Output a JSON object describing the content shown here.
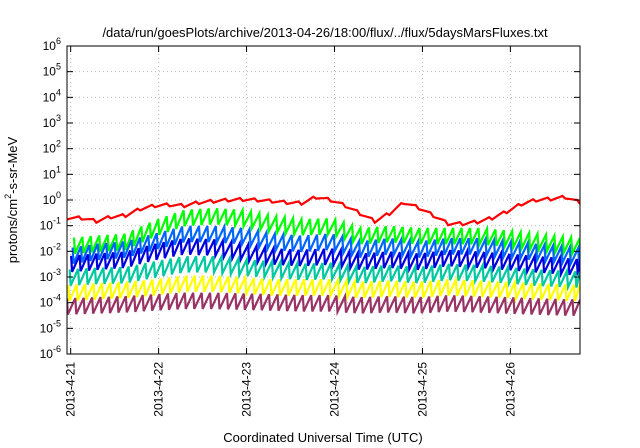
{
  "chart_data": {
    "type": "line",
    "title": "/data/run/goesPlots/archive/2013-04-26/18:00/flux/../flux/5daysMarsFluxes.txt",
    "xlabel": "Coordinated Universal Time (UTC)",
    "ylabel": {
      "prefix": "protons/cm",
      "superscript": "2",
      "suffix": "-s-sr-MeV"
    },
    "x_scale": "time",
    "x_range": [
      "2013-04-20T23:00",
      "2013-04-26T19:00"
    ],
    "x_tick_labels": [
      "2013-4-21",
      "2013-4-22",
      "2013-4-23",
      "2013-4-24",
      "2013-4-25",
      "2013-4-26"
    ],
    "y_scale": "log",
    "ylim": [
      1e-06,
      1000000.0
    ],
    "y_tick_labels": [
      {
        "base": "10",
        "exp": "-6"
      },
      {
        "base": "10",
        "exp": "-5"
      },
      {
        "base": "10",
        "exp": "-4"
      },
      {
        "base": "10",
        "exp": "-3"
      },
      {
        "base": "10",
        "exp": "-2"
      },
      {
        "base": "10",
        "exp": "-1"
      },
      {
        "base": "10",
        "exp": "0"
      },
      {
        "base": "10",
        "exp": "1"
      },
      {
        "base": "10",
        "exp": "2"
      },
      {
        "base": "10",
        "exp": "3"
      },
      {
        "base": "10",
        "exp": "4"
      },
      {
        "base": "10",
        "exp": "5"
      },
      {
        "base": "10",
        "exp": "6"
      }
    ],
    "grid": true,
    "legend": "none",
    "series": [
      {
        "color": "#ff0000",
        "pattern": "slow",
        "points": [
          {
            "x": "2013-04-20T23:00",
            "y": 0.2
          },
          {
            "x": "2013-04-21T03:00",
            "y": 0.2
          },
          {
            "x": "2013-04-21T07:00",
            "y": 0.15
          },
          {
            "x": "2013-04-21T11:00",
            "y": 0.22
          },
          {
            "x": "2013-04-21T15:00",
            "y": 0.25
          },
          {
            "x": "2013-04-21T19:00",
            "y": 0.45
          },
          {
            "x": "2013-04-21T23:00",
            "y": 0.6
          },
          {
            "x": "2013-04-22T03:00",
            "y": 0.65
          },
          {
            "x": "2013-04-22T07:00",
            "y": 0.6
          },
          {
            "x": "2013-04-22T11:00",
            "y": 0.8
          },
          {
            "x": "2013-04-22T15:00",
            "y": 0.9
          },
          {
            "x": "2013-04-22T19:00",
            "y": 1.0
          },
          {
            "x": "2013-04-22T23:00",
            "y": 1.05
          },
          {
            "x": "2013-04-23T03:00",
            "y": 1.0
          },
          {
            "x": "2013-04-23T07:00",
            "y": 0.9
          },
          {
            "x": "2013-04-23T11:00",
            "y": 0.8
          },
          {
            "x": "2013-04-23T15:00",
            "y": 0.75
          },
          {
            "x": "2013-04-23T19:00",
            "y": 1.3
          },
          {
            "x": "2013-04-23T23:00",
            "y": 1.0
          },
          {
            "x": "2013-04-24T03:00",
            "y": 0.6
          },
          {
            "x": "2013-04-24T07:00",
            "y": 0.3
          },
          {
            "x": "2013-04-24T11:00",
            "y": 0.15
          },
          {
            "x": "2013-04-24T15:00",
            "y": 0.3
          },
          {
            "x": "2013-04-24T19:00",
            "y": 0.8
          },
          {
            "x": "2013-04-24T23:00",
            "y": 0.5
          },
          {
            "x": "2013-04-25T03:00",
            "y": 0.25
          },
          {
            "x": "2013-04-25T07:00",
            "y": 0.12
          },
          {
            "x": "2013-04-25T11:00",
            "y": 0.12
          },
          {
            "x": "2013-04-25T15:00",
            "y": 0.14
          },
          {
            "x": "2013-04-25T19:00",
            "y": 0.2
          },
          {
            "x": "2013-04-25T23:00",
            "y": 0.35
          },
          {
            "x": "2013-04-26T03:00",
            "y": 0.7
          },
          {
            "x": "2013-04-26T07:00",
            "y": 1.0
          },
          {
            "x": "2013-04-26T11:00",
            "y": 1.1
          },
          {
            "x": "2013-04-26T15:00",
            "y": 1.3
          },
          {
            "x": "2013-04-26T19:00",
            "y": 0.8
          }
        ]
      },
      {
        "color": "#00ff00",
        "pattern": "sawtooth",
        "points": [
          {
            "x": "2013-04-20T23:00",
            "y": 0.02
          },
          {
            "x": "2013-04-21T07:00",
            "y": 0.025
          },
          {
            "x": "2013-04-21T15:00",
            "y": 0.03
          },
          {
            "x": "2013-04-21T23:00",
            "y": 0.1
          },
          {
            "x": "2013-04-22T07:00",
            "y": 0.25
          },
          {
            "x": "2013-04-22T15:00",
            "y": 0.3
          },
          {
            "x": "2013-04-22T23:00",
            "y": 0.25
          },
          {
            "x": "2013-04-23T07:00",
            "y": 0.15
          },
          {
            "x": "2013-04-23T15:00",
            "y": 0.11
          },
          {
            "x": "2013-04-23T23:00",
            "y": 0.12
          },
          {
            "x": "2013-04-24T07:00",
            "y": 0.05
          },
          {
            "x": "2013-04-24T15:00",
            "y": 0.06
          },
          {
            "x": "2013-04-24T23:00",
            "y": 0.05
          },
          {
            "x": "2013-04-25T07:00",
            "y": 0.05
          },
          {
            "x": "2013-04-25T15:00",
            "y": 0.05
          },
          {
            "x": "2013-04-25T23:00",
            "y": 0.04
          },
          {
            "x": "2013-04-26T07:00",
            "y": 0.03
          },
          {
            "x": "2013-04-26T19:00",
            "y": 0.02
          }
        ]
      },
      {
        "color": "#0066ff",
        "pattern": "sawtooth",
        "points": [
          {
            "x": "2013-04-20T23:00",
            "y": 0.008
          },
          {
            "x": "2013-04-21T07:00",
            "y": 0.012
          },
          {
            "x": "2013-04-21T15:00",
            "y": 0.015
          },
          {
            "x": "2013-04-21T23:00",
            "y": 0.03
          },
          {
            "x": "2013-04-22T07:00",
            "y": 0.06
          },
          {
            "x": "2013-04-22T15:00",
            "y": 0.06
          },
          {
            "x": "2013-04-22T23:00",
            "y": 0.05
          },
          {
            "x": "2013-04-23T07:00",
            "y": 0.03
          },
          {
            "x": "2013-04-23T15:00",
            "y": 0.025
          },
          {
            "x": "2013-04-23T23:00",
            "y": 0.03
          },
          {
            "x": "2013-04-24T07:00",
            "y": 0.015
          },
          {
            "x": "2013-04-24T15:00",
            "y": 0.02
          },
          {
            "x": "2013-04-24T23:00",
            "y": 0.015
          },
          {
            "x": "2013-04-25T07:00",
            "y": 0.02
          },
          {
            "x": "2013-04-25T15:00",
            "y": 0.02
          },
          {
            "x": "2013-04-25T23:00",
            "y": 0.015
          },
          {
            "x": "2013-04-26T07:00",
            "y": 0.012
          },
          {
            "x": "2013-04-26T19:00",
            "y": 0.008
          }
        ]
      },
      {
        "color": "#0000dd",
        "pattern": "sawtooth",
        "points": [
          {
            "x": "2013-04-20T23:00",
            "y": 0.004
          },
          {
            "x": "2013-04-21T07:00",
            "y": 0.005
          },
          {
            "x": "2013-04-21T15:00",
            "y": 0.006
          },
          {
            "x": "2013-04-21T23:00",
            "y": 0.012
          },
          {
            "x": "2013-04-22T07:00",
            "y": 0.02
          },
          {
            "x": "2013-04-22T15:00",
            "y": 0.018
          },
          {
            "x": "2013-04-22T23:00",
            "y": 0.012
          },
          {
            "x": "2013-04-23T07:00",
            "y": 0.008
          },
          {
            "x": "2013-04-23T15:00",
            "y": 0.007
          },
          {
            "x": "2013-04-23T23:00",
            "y": 0.008
          },
          {
            "x": "2013-04-24T07:00",
            "y": 0.005
          },
          {
            "x": "2013-04-24T15:00",
            "y": 0.006
          },
          {
            "x": "2013-04-24T23:00",
            "y": 0.005
          },
          {
            "x": "2013-04-25T07:00",
            "y": 0.007
          },
          {
            "x": "2013-04-25T15:00",
            "y": 0.006
          },
          {
            "x": "2013-04-25T23:00",
            "y": 0.005
          },
          {
            "x": "2013-04-26T07:00",
            "y": 0.004
          },
          {
            "x": "2013-04-26T19:00",
            "y": 0.003
          }
        ]
      },
      {
        "color": "#00c8a0",
        "pattern": "sawtooth",
        "points": [
          {
            "x": "2013-04-20T23:00",
            "y": 0.0012
          },
          {
            "x": "2013-04-21T07:00",
            "y": 0.0014
          },
          {
            "x": "2013-04-21T15:00",
            "y": 0.0015
          },
          {
            "x": "2013-04-21T23:00",
            "y": 0.0025
          },
          {
            "x": "2013-04-22T07:00",
            "y": 0.004
          },
          {
            "x": "2013-04-22T15:00",
            "y": 0.004
          },
          {
            "x": "2013-04-22T23:00",
            "y": 0.003
          },
          {
            "x": "2013-04-23T07:00",
            "y": 0.0025
          },
          {
            "x": "2013-04-23T15:00",
            "y": 0.002
          },
          {
            "x": "2013-04-23T23:00",
            "y": 0.0022
          },
          {
            "x": "2013-04-24T07:00",
            "y": 0.0015
          },
          {
            "x": "2013-04-24T15:00",
            "y": 0.0018
          },
          {
            "x": "2013-04-24T23:00",
            "y": 0.0015
          },
          {
            "x": "2013-04-25T07:00",
            "y": 0.002
          },
          {
            "x": "2013-04-25T15:00",
            "y": 0.0018
          },
          {
            "x": "2013-04-25T23:00",
            "y": 0.0015
          },
          {
            "x": "2013-04-26T07:00",
            "y": 0.0012
          },
          {
            "x": "2013-04-26T19:00",
            "y": 0.001
          }
        ]
      },
      {
        "color": "#ffff00",
        "pattern": "sawtooth",
        "points": [
          {
            "x": "2013-04-20T23:00",
            "y": 0.0003
          },
          {
            "x": "2013-04-21T07:00",
            "y": 0.00035
          },
          {
            "x": "2013-04-21T15:00",
            "y": 0.0004
          },
          {
            "x": "2013-04-21T23:00",
            "y": 0.0005
          },
          {
            "x": "2013-04-22T07:00",
            "y": 0.0007
          },
          {
            "x": "2013-04-22T15:00",
            "y": 0.0007
          },
          {
            "x": "2013-04-22T23:00",
            "y": 0.0006
          },
          {
            "x": "2013-04-23T07:00",
            "y": 0.0005
          },
          {
            "x": "2013-04-23T15:00",
            "y": 0.0005
          },
          {
            "x": "2013-04-23T23:00",
            "y": 0.0005
          },
          {
            "x": "2013-04-24T07:00",
            "y": 0.0004
          },
          {
            "x": "2013-04-24T15:00",
            "y": 0.00045
          },
          {
            "x": "2013-04-24T23:00",
            "y": 0.0004
          },
          {
            "x": "2013-04-25T07:00",
            "y": 0.0005
          },
          {
            "x": "2013-04-25T15:00",
            "y": 0.00045
          },
          {
            "x": "2013-04-25T23:00",
            "y": 0.0004
          },
          {
            "x": "2013-04-26T07:00",
            "y": 0.00035
          },
          {
            "x": "2013-04-26T19:00",
            "y": 0.0003
          }
        ]
      },
      {
        "color": "#993366",
        "pattern": "sawtooth",
        "points": [
          {
            "x": "2013-04-20T23:00",
            "y": 9e-05
          },
          {
            "x": "2013-04-21T07:00",
            "y": 0.0001
          },
          {
            "x": "2013-04-21T15:00",
            "y": 0.00011
          },
          {
            "x": "2013-04-21T23:00",
            "y": 0.00013
          },
          {
            "x": "2013-04-22T07:00",
            "y": 0.00015
          },
          {
            "x": "2013-04-22T15:00",
            "y": 0.00015
          },
          {
            "x": "2013-04-22T23:00",
            "y": 0.00014
          },
          {
            "x": "2013-04-23T07:00",
            "y": 0.00013
          },
          {
            "x": "2013-04-23T15:00",
            "y": 0.00012
          },
          {
            "x": "2013-04-23T23:00",
            "y": 0.00012
          },
          {
            "x": "2013-04-24T07:00",
            "y": 0.0001
          },
          {
            "x": "2013-04-24T15:00",
            "y": 0.00011
          },
          {
            "x": "2013-04-24T23:00",
            "y": 0.0001
          },
          {
            "x": "2013-04-25T07:00",
            "y": 0.00012
          },
          {
            "x": "2013-04-25T15:00",
            "y": 0.00011
          },
          {
            "x": "2013-04-25T23:00",
            "y": 0.0001
          },
          {
            "x": "2013-04-26T07:00",
            "y": 9e-05
          },
          {
            "x": "2013-04-26T19:00",
            "y": 8e-05
          }
        ]
      }
    ]
  }
}
